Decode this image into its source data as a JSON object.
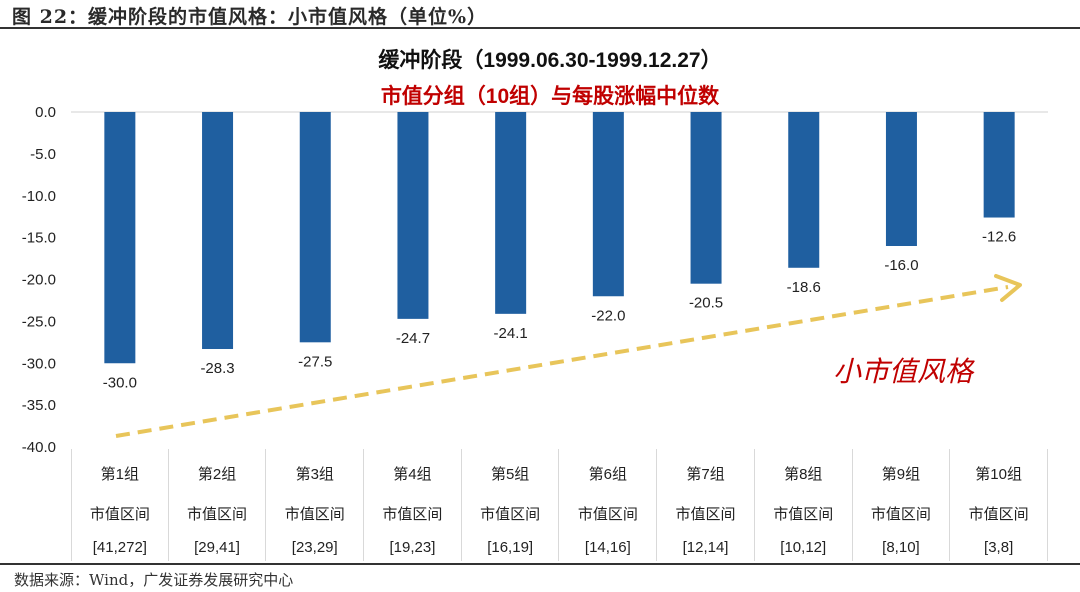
{
  "figure": {
    "title": "图 22：缓冲阶段的市值风格：小市值风格（单位%）",
    "source": "数据来源：Wind，广发证券发展研究中心"
  },
  "chart_data": {
    "type": "bar",
    "title": "缓冲阶段（1999.06.30-1999.12.27）",
    "subtitle": "市值分组（10组）与每股涨幅中位数",
    "xlabel": "",
    "ylabel": "",
    "unit": "%",
    "ylim": [
      -40,
      0
    ],
    "yticks": [
      "0.0",
      "-5.0",
      "-10.0",
      "-15.0",
      "-20.0",
      "-25.0",
      "-30.0",
      "-35.0",
      "-40.0"
    ],
    "grid": false,
    "legend": null,
    "bar_color": "#1f5fa0",
    "categories": [
      {
        "group": "第1组",
        "label": "市值区间",
        "range": "[41,272]"
      },
      {
        "group": "第2组",
        "label": "市值区间",
        "range": "[29,41]"
      },
      {
        "group": "第3组",
        "label": "市值区间",
        "range": "[23,29]"
      },
      {
        "group": "第4组",
        "label": "市值区间",
        "range": "[19,23]"
      },
      {
        "group": "第5组",
        "label": "市值区间",
        "range": "[16,19]"
      },
      {
        "group": "第6组",
        "label": "市值区间",
        "range": "[14,16]"
      },
      {
        "group": "第7组",
        "label": "市值区间",
        "range": "[12,14]"
      },
      {
        "group": "第8组",
        "label": "市值区间",
        "range": "[10,12]"
      },
      {
        "group": "第9组",
        "label": "市值区间",
        "range": "[8,10]"
      },
      {
        "group": "第10组",
        "label": "市值区间",
        "range": "[3,8]"
      }
    ],
    "values": [
      -30.0,
      -28.3,
      -27.5,
      -24.7,
      -24.1,
      -22.0,
      -20.5,
      -18.6,
      -16.0,
      -12.6
    ],
    "value_labels": [
      "-30.0",
      "-28.3",
      "-27.5",
      "-24.7",
      "-24.1",
      "-22.0",
      "-20.5",
      "-18.6",
      "-16.0",
      "-12.6"
    ],
    "annotations": [
      {
        "type": "dashed-arrow",
        "color": "#e8c55a",
        "from": "group 1 bottom-left",
        "to": "group 10 upper-right",
        "meaning": "rising trend"
      },
      {
        "type": "text",
        "text": "小市值风格",
        "color": "#c00000"
      }
    ]
  }
}
